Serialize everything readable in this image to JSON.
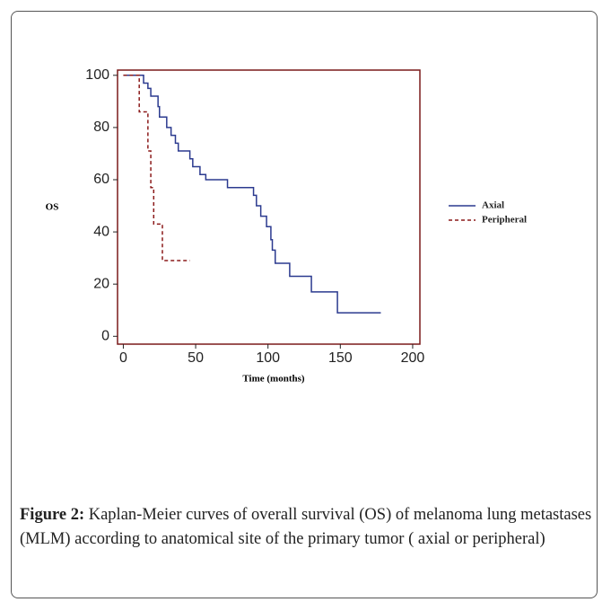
{
  "chart_data": {
    "type": "line",
    "step": true,
    "xlabel": "Time (months)",
    "ylabel": "OS",
    "xlim": [
      -4,
      205
    ],
    "ylim": [
      -3,
      102
    ],
    "xticks": [
      0,
      50,
      100,
      150,
      200
    ],
    "yticks": [
      0,
      20,
      40,
      60,
      80,
      100
    ],
    "frame_color": "#7a1a1a",
    "series": [
      {
        "name": "Axial",
        "color": "#2b3a8f",
        "dash": false,
        "x": [
          0,
          14,
          17,
          19,
          24,
          25,
          30,
          33,
          36,
          38,
          46,
          48,
          53,
          57,
          72,
          90,
          92,
          95,
          99,
          102,
          103,
          105,
          115,
          130,
          148,
          178
        ],
        "values": [
          100,
          97,
          95,
          92,
          88,
          84,
          80,
          77,
          74,
          71,
          68,
          65,
          62,
          60,
          57,
          54,
          50,
          46,
          42,
          37,
          33,
          28,
          23,
          17,
          9,
          9
        ]
      },
      {
        "name": "Peripheral",
        "color": "#8b1a1a",
        "dash": true,
        "x": [
          0,
          11,
          17,
          19,
          21,
          27,
          46
        ],
        "values": [
          100,
          86,
          71,
          57,
          43,
          29,
          29
        ]
      }
    ]
  },
  "caption": {
    "label": "Figure 2:",
    "text": "Kaplan-Meier curves of overall survival (OS) of melanoma lung metastases (MLM) according to anatomical site of the primary tumor ( axial or peripheral)"
  }
}
